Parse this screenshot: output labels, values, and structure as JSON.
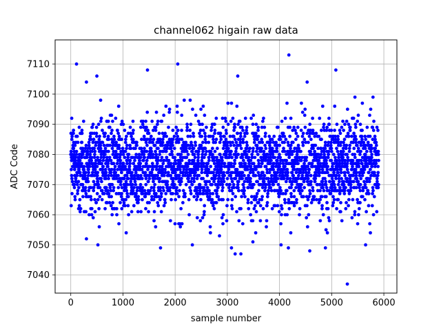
{
  "chart_data": {
    "type": "scatter",
    "title": "channel062 higain raw data",
    "xlabel": "sample number",
    "ylabel": "ADC Code",
    "xlim": [
      -300,
      6250
    ],
    "ylim": [
      7034,
      7118
    ],
    "x_ticks": [
      0,
      1000,
      2000,
      3000,
      4000,
      5000,
      6000
    ],
    "y_ticks": [
      7040,
      7050,
      7060,
      7070,
      7080,
      7090,
      7100,
      7110
    ],
    "grid": true,
    "marker_color": "#0000ff",
    "series": [
      {
        "x_range": [
          0,
          5900
        ],
        "y_center": 7076,
        "y_core_range": [
          7060,
          7095
        ],
        "outliers": [
          {
            "x": 110,
            "y": 7110
          },
          {
            "x": 4180,
            "y": 7113
          },
          {
            "x": 2050,
            "y": 7110
          },
          {
            "x": 5080,
            "y": 7108
          },
          {
            "x": 1470,
            "y": 7108
          },
          {
            "x": 500,
            "y": 7106
          },
          {
            "x": 3200,
            "y": 7106
          },
          {
            "x": 4530,
            "y": 7104
          },
          {
            "x": 300,
            "y": 7104
          },
          {
            "x": 5300,
            "y": 7037
          },
          {
            "x": 3150,
            "y": 7047
          },
          {
            "x": 3260,
            "y": 7047
          },
          {
            "x": 4580,
            "y": 7048
          },
          {
            "x": 3080,
            "y": 7049
          },
          {
            "x": 1720,
            "y": 7049
          },
          {
            "x": 4170,
            "y": 7049
          },
          {
            "x": 4880,
            "y": 7049
          },
          {
            "x": 520,
            "y": 7050
          },
          {
            "x": 2330,
            "y": 7050
          },
          {
            "x": 4030,
            "y": 7050
          },
          {
            "x": 5650,
            "y": 7050
          },
          {
            "x": 3490,
            "y": 7051
          },
          {
            "x": 300,
            "y": 7052
          },
          {
            "x": 2850,
            "y": 7053
          }
        ]
      }
    ]
  }
}
